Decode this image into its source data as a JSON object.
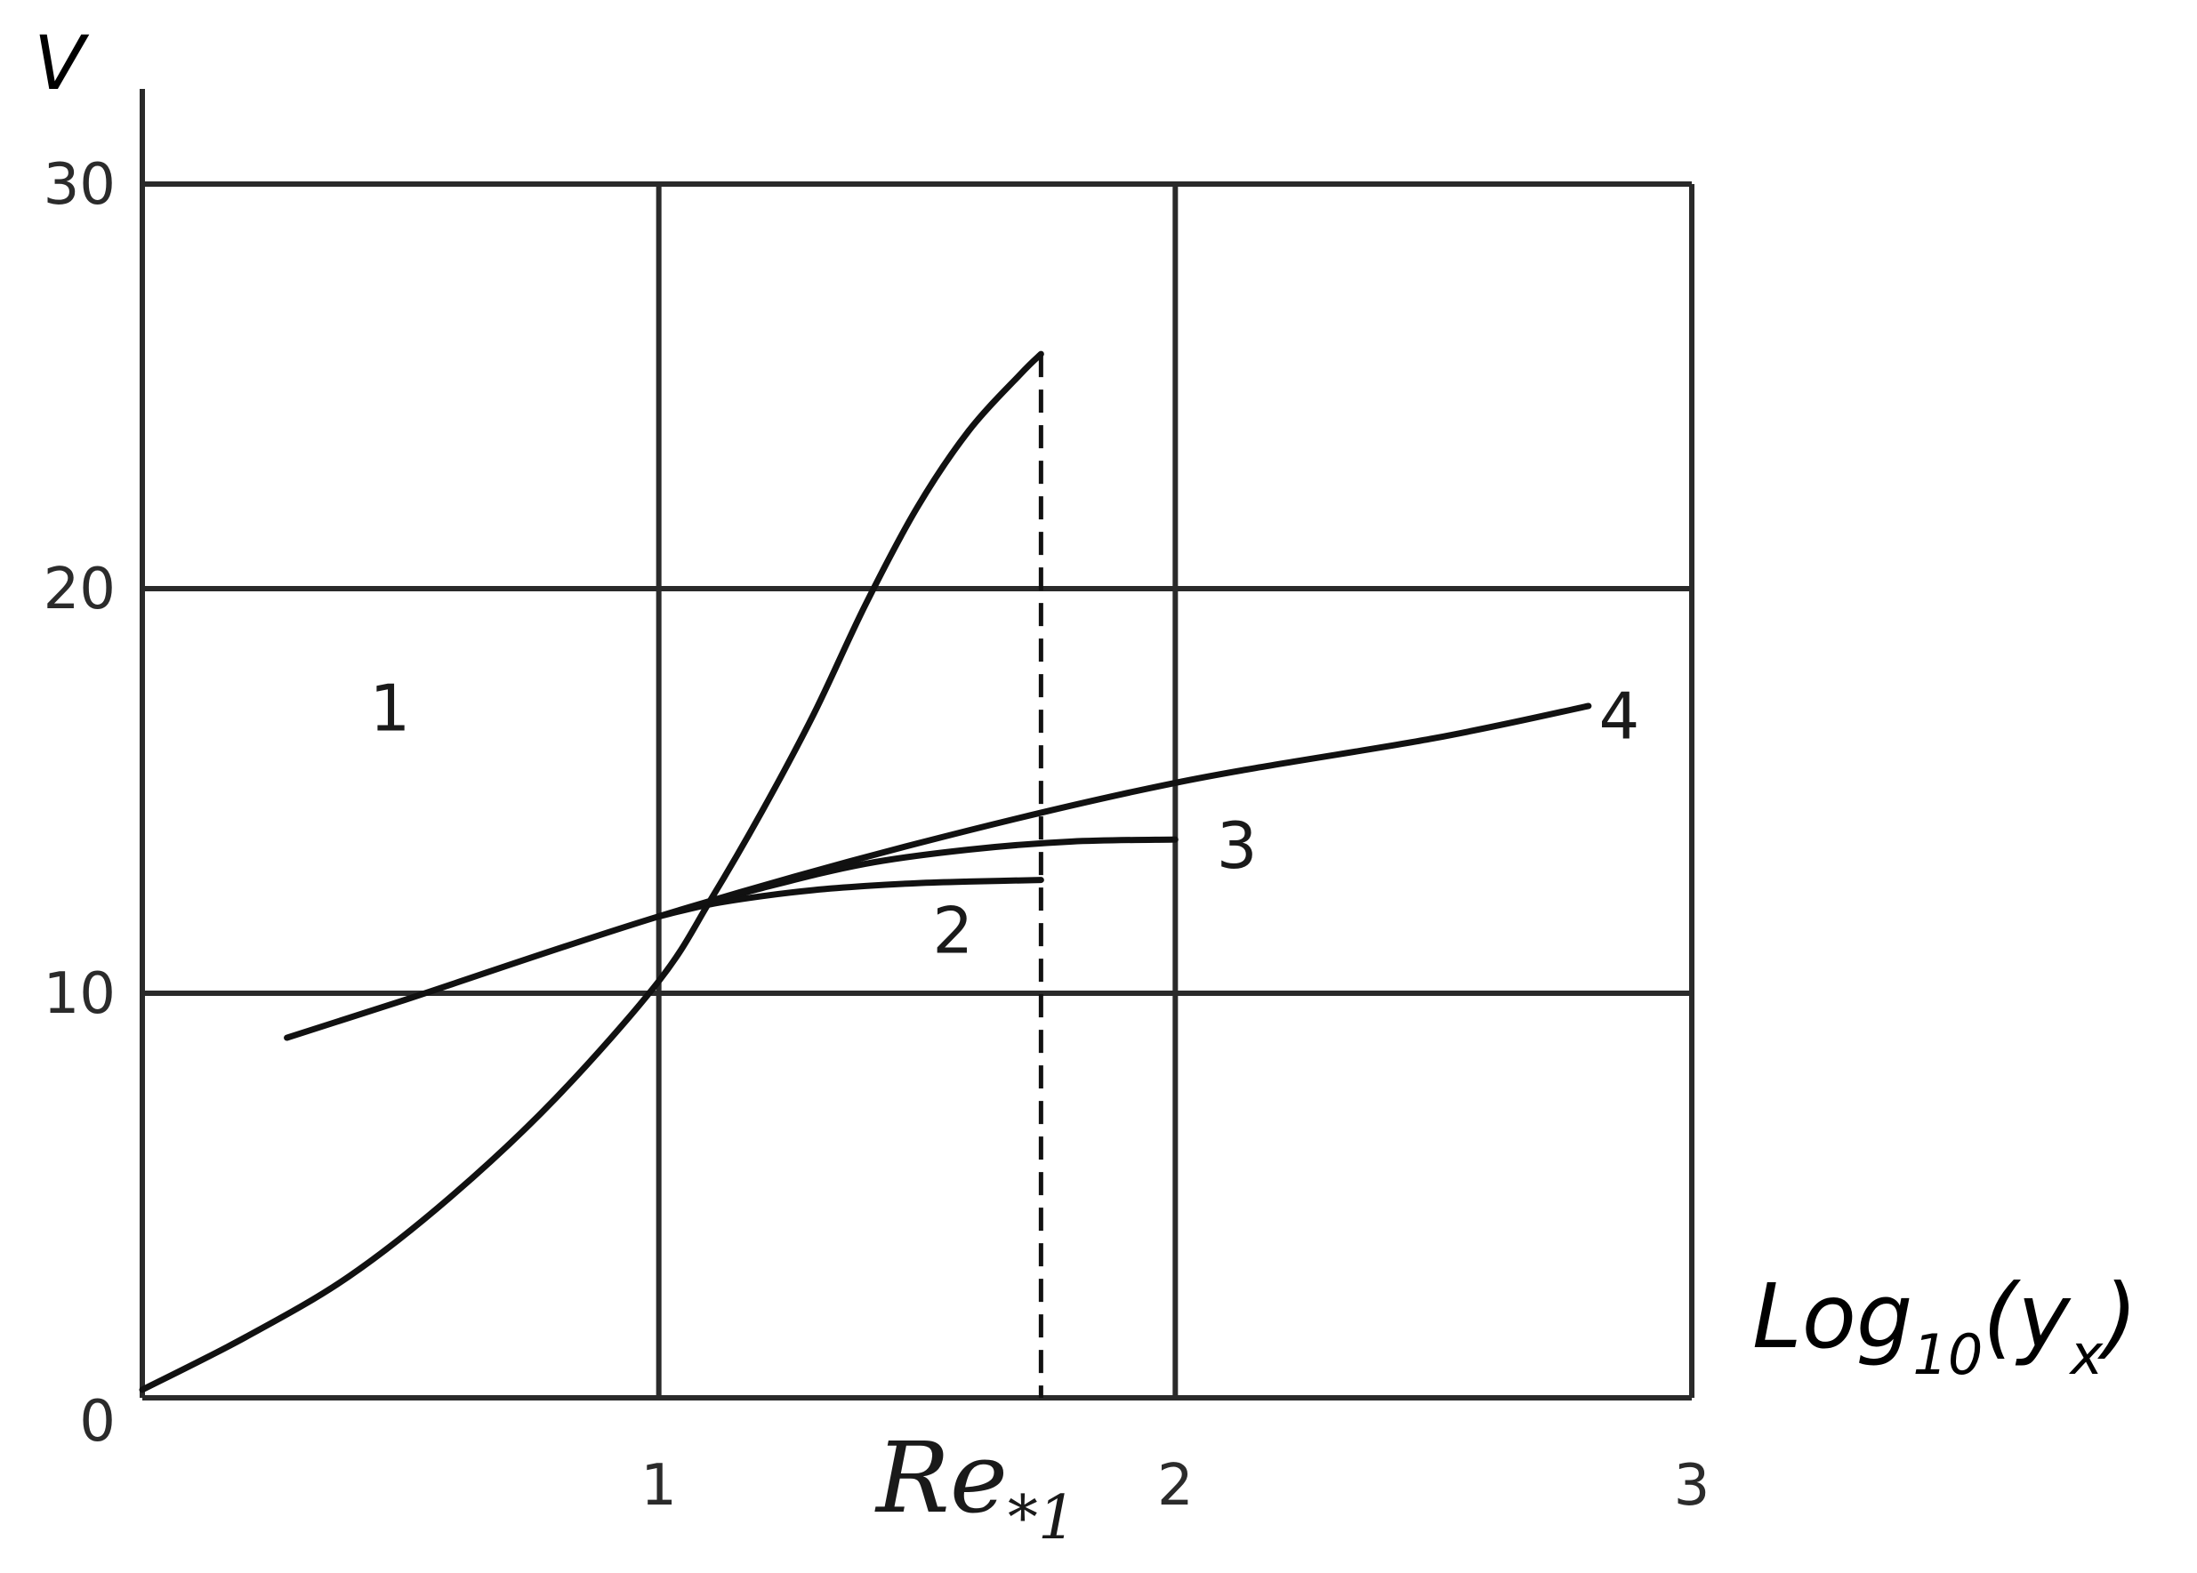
{
  "chart_data": {
    "type": "line",
    "xlabel": "Log",
    "xlabel_sub": "10",
    "xlabel_arg_open": "(y",
    "xlabel_arg_sub": "x",
    "xlabel_arg_close": ")",
    "ylabel": "V",
    "xlim": [
      0,
      3
    ],
    "ylim": [
      0,
      30
    ],
    "x_ticks": [
      "1",
      "2",
      "3"
    ],
    "y_ticks": [
      "0",
      "10",
      "20",
      "30"
    ],
    "grid": true,
    "annotation": {
      "base": "Re",
      "sub": "*1",
      "x": 1.74
    },
    "series": [
      {
        "name": "1",
        "x": [
          0,
          0.2,
          0.4,
          0.6,
          0.8,
          1.0,
          1.1,
          1.2,
          1.3,
          1.4,
          1.5,
          1.6,
          1.7,
          1.74
        ],
        "y": [
          0.2,
          1.5,
          3.0,
          5.0,
          7.4,
          10.3,
          12.3,
          14.5,
          16.9,
          19.6,
          22.0,
          23.9,
          25.3,
          25.8
        ]
      },
      {
        "name": "2",
        "x": [
          1.0,
          1.1,
          1.2,
          1.3,
          1.4,
          1.5,
          1.6,
          1.74
        ],
        "y": [
          11.9,
          12.2,
          12.4,
          12.55,
          12.65,
          12.72,
          12.76,
          12.8
        ]
      },
      {
        "name": "3",
        "x": [
          1.0,
          1.2,
          1.4,
          1.6,
          1.8,
          2.0
        ],
        "y": [
          11.9,
          12.6,
          13.2,
          13.55,
          13.75,
          13.8
        ]
      },
      {
        "name": "4",
        "x": [
          0.28,
          0.5,
          1.0,
          1.5,
          2.0,
          2.5,
          2.8
        ],
        "y": [
          8.9,
          9.8,
          11.9,
          13.7,
          15.2,
          16.3,
          17.1
        ]
      }
    ]
  }
}
